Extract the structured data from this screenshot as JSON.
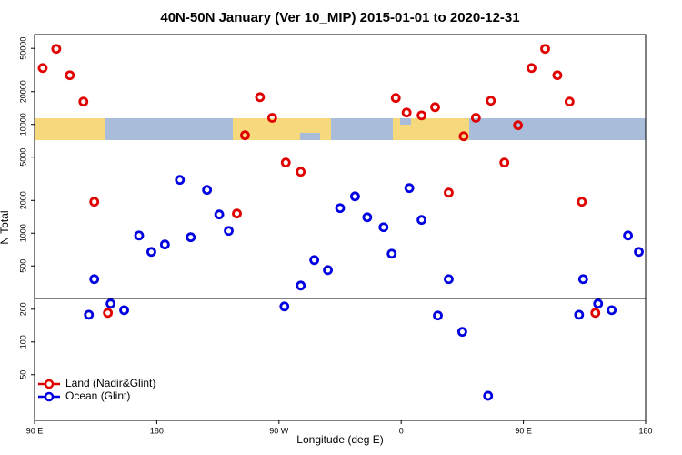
{
  "chart_data": {
    "type": "scatter",
    "title": "40N-50N January (Ver 10_MIP)   2015-01-01 to 2020-12-31",
    "x_label": "Longitude (deg E)",
    "y_label": "N Total",
    "xlim": [
      90,
      540
    ],
    "xticks": [
      {
        "value": 90,
        "label": "90 E"
      },
      180,
      {
        "value": 270,
        "label": "90 W"
      },
      {
        "value": 360,
        "label": "0"
      },
      {
        "value": 450,
        "label": "90 E"
      },
      {
        "value": 540,
        "label": "180"
      }
    ],
    "ylim": [
      19,
      67000
    ],
    "log_y": true,
    "yticks": [
      50,
      100,
      200,
      500,
      1000,
      2000,
      5000,
      10000,
      20000,
      50000
    ],
    "legend": "bottom-left",
    "series": [
      {
        "name": "Land (Nadir&Glint)",
        "color": "#e00000",
        "x": [
          96,
          106,
          116,
          126,
          134,
          144,
          239,
          245,
          256,
          265,
          275,
          286,
          356,
          364,
          375,
          385,
          395,
          406,
          415,
          426,
          436,
          446,
          456,
          466,
          475,
          484,
          493,
          503
        ],
        "y": [
          33000,
          49500,
          28300,
          16200,
          1945,
          185,
          1515,
          7940,
          17800,
          11500,
          4460,
          3670,
          17500,
          12850,
          12100,
          14400,
          2360,
          7780,
          11500,
          16500,
          4460,
          9820,
          33000,
          49500,
          28300,
          16200,
          1945,
          185
        ]
      },
      {
        "name": "Ocean (Glint)",
        "color": "#0000e0",
        "x": [
          130,
          134,
          146,
          156,
          167,
          176,
          186,
          197,
          205,
          217,
          226,
          233,
          274,
          286,
          296,
          306,
          315,
          326,
          335,
          347,
          353,
          366,
          375,
          387,
          395,
          405,
          424,
          491,
          494,
          505,
          515,
          527,
          535
        ],
        "y": [
          178,
          378,
          225,
          196,
          953,
          674,
          787,
          3090,
          918,
          2500,
          1486,
          1050,
          212,
          330,
          566,
          458,
          1700,
          2180,
          1400,
          1134,
          648,
          2600,
          1324,
          175,
          378,
          124,
          32,
          178,
          378,
          225,
          196,
          953,
          674
        ]
      }
    ]
  }
}
